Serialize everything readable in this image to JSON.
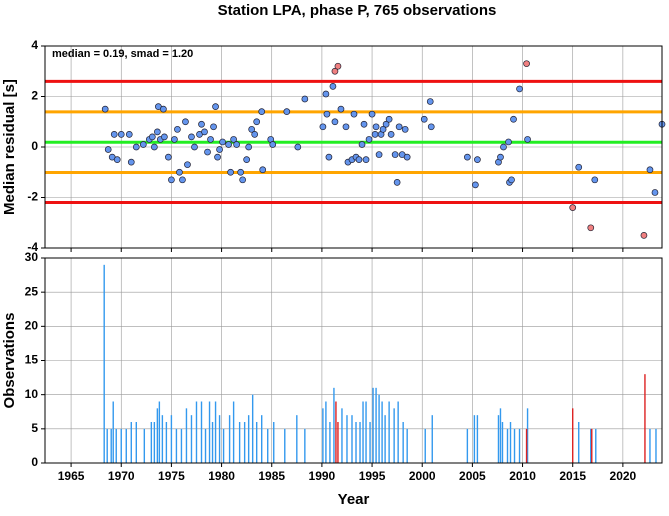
{
  "chart_data": [
    {
      "type": "scatter",
      "title": "Station LPA, phase P, 765 observations",
      "ylabel": "Median residual [s]",
      "annotation": "median = 0.19, smad = 1.20",
      "xlim": [
        1962.4,
        2023.9
      ],
      "xticks": [
        1965,
        1970,
        1975,
        1980,
        1985,
        1990,
        1995,
        2000,
        2005,
        2010,
        2015,
        2020
      ],
      "ylim": [
        -4,
        4
      ],
      "yticks": [
        -4,
        -2,
        0,
        2,
        4
      ],
      "grid": true,
      "hlines": [
        {
          "value": 2.6,
          "color": "#ee1111"
        },
        {
          "value": 1.39,
          "color": "#ffa500"
        },
        {
          "value": 0.19,
          "color": "#22ee22"
        },
        {
          "value": -1.01,
          "color": "#ffa500"
        },
        {
          "value": -2.2,
          "color": "#ee1111"
        }
      ],
      "series": [
        {
          "color": "#6495ed",
          "x": [
            1968.4,
            1968.7,
            1969.1,
            1969.3,
            1969.6,
            1970.0,
            1970.8,
            1971.0,
            1971.5,
            1972.2,
            1972.8,
            1973.1,
            1973.3,
            1973.6,
            1973.7,
            1973.9,
            1974.2,
            1974.3,
            1974.7,
            1975.0,
            1975.3,
            1975.6,
            1975.8,
            1976.1,
            1976.4,
            1976.6,
            1977.0,
            1977.3,
            1977.8,
            1978.0,
            1978.3,
            1978.6,
            1978.9,
            1979.2,
            1979.4,
            1979.6,
            1979.8,
            1980.1,
            1980.7,
            1980.9,
            1981.2,
            1981.5,
            1981.9,
            1982.1,
            1982.5,
            1982.7,
            1983.0,
            1983.3,
            1983.5,
            1984.0,
            1984.1,
            1984.9,
            1985.1,
            1986.5,
            1987.6,
            1988.3,
            1990.1,
            1990.4,
            1990.5,
            1990.7,
            1991.1,
            1991.3,
            1991.9,
            1992.4,
            1992.6,
            1993.0,
            1993.2,
            1993.4,
            1993.7,
            1994.0,
            1994.2,
            1994.4,
            1994.7,
            1995.0,
            1995.3,
            1995.4,
            1995.7,
            1995.9,
            1996.1,
            1996.4,
            1996.7,
            1996.9,
            1997.3,
            1997.5,
            1997.7,
            1998.0,
            1998.3,
            1998.5,
            2000.2,
            2000.8,
            2000.9,
            2004.5,
            2005.3,
            2005.5,
            2007.6,
            2007.8,
            2008.1,
            2008.6,
            2008.7,
            2008.9,
            2009.1,
            2009.7,
            2010.5,
            2015.6,
            2017.2,
            2022.7,
            2023.2,
            2023.9
          ],
          "values": [
            1.5,
            -0.1,
            -0.4,
            0.5,
            -0.5,
            0.5,
            0.5,
            -0.6,
            0.0,
            0.1,
            0.3,
            0.4,
            0.0,
            0.6,
            1.6,
            0.3,
            1.5,
            0.4,
            -0.4,
            -1.3,
            0.3,
            0.7,
            -1.0,
            -1.3,
            1.0,
            -0.7,
            0.4,
            0.0,
            0.5,
            0.9,
            0.6,
            -0.2,
            0.3,
            0.8,
            1.6,
            -0.4,
            -0.1,
            0.2,
            0.1,
            -1.0,
            0.3,
            0.1,
            -1.0,
            -1.3,
            -0.5,
            0.0,
            0.7,
            0.5,
            1.0,
            1.4,
            -0.9,
            0.3,
            0.1,
            1.4,
            0.0,
            1.9,
            0.8,
            2.1,
            1.3,
            -0.4,
            2.4,
            1.0,
            1.5,
            0.8,
            -0.6,
            -0.5,
            1.3,
            -0.4,
            -0.5,
            0.1,
            0.9,
            -0.5,
            0.3,
            1.3,
            0.5,
            0.8,
            -0.3,
            0.5,
            0.7,
            0.9,
            1.1,
            0.5,
            -0.3,
            -1.4,
            0.8,
            -0.3,
            0.7,
            -0.4,
            1.1,
            1.8,
            0.8,
            -0.4,
            -1.5,
            -0.5,
            -0.6,
            -0.4,
            0.0,
            0.2,
            -1.4,
            -1.3,
            1.1,
            2.3,
            0.3,
            -0.8,
            -1.3,
            -0.9,
            -1.8,
            0.9
          ]
        },
        {
          "color": "#f08080",
          "x": [
            1991.3,
            1991.6,
            2010.4,
            2015.0,
            2016.8,
            2022.1
          ],
          "values": [
            3.0,
            3.2,
            3.3,
            -2.4,
            -3.2,
            -3.5
          ]
        }
      ]
    },
    {
      "type": "bar",
      "xlabel": "Year",
      "ylabel": "Observations",
      "xlim": [
        1962.4,
        2023.9
      ],
      "xticks": [
        1965,
        1970,
        1975,
        1980,
        1985,
        1990,
        1995,
        2000,
        2005,
        2010,
        2015,
        2020
      ],
      "ylim": [
        0,
        30
      ],
      "yticks": [
        0,
        5,
        10,
        15,
        20,
        25,
        30
      ],
      "grid": true,
      "series": [
        {
          "color": "#3399ee",
          "x": [
            1968.3,
            1968.6,
            1969.0,
            1969.2,
            1969.5,
            1970.0,
            1970.5,
            1971.0,
            1971.5,
            1972.3,
            1973.0,
            1973.3,
            1973.6,
            1973.8,
            1974.1,
            1974.5,
            1975.0,
            1975.5,
            1976.0,
            1976.5,
            1977.0,
            1977.5,
            1978.0,
            1978.4,
            1978.8,
            1979.1,
            1979.4,
            1979.8,
            1980.2,
            1980.8,
            1981.2,
            1981.8,
            1982.3,
            1982.7,
            1983.1,
            1983.5,
            1984.0,
            1984.6,
            1985.2,
            1986.3,
            1987.5,
            1988.3,
            1990.1,
            1990.4,
            1990.8,
            1991.2,
            1992.0,
            1992.5,
            1993.0,
            1993.4,
            1993.8,
            1994.1,
            1994.4,
            1994.8,
            1995.1,
            1995.4,
            1995.7,
            1996.0,
            1996.3,
            1996.7,
            1997.2,
            1997.6,
            1998.1,
            1998.5,
            2000.3,
            2001.0,
            2004.5,
            2005.2,
            2005.5,
            2007.6,
            2007.8,
            2008.0,
            2008.5,
            2008.8,
            2009.2,
            2009.7,
            2010.5,
            2015.6,
            2016.8,
            2017.3,
            2022.7,
            2023.3
          ],
          "values": [
            29,
            5,
            5,
            9,
            5,
            5,
            5,
            6,
            6,
            5,
            6,
            6,
            8,
            9,
            7,
            6,
            7,
            5,
            5,
            8,
            7,
            9,
            9,
            5,
            9,
            6,
            9,
            7,
            5,
            7,
            9,
            6,
            6,
            7,
            10,
            6,
            7,
            5,
            6,
            5,
            7,
            5,
            8,
            9,
            6,
            11,
            8,
            7,
            7,
            6,
            6,
            9,
            9,
            6,
            11,
            11,
            10,
            9,
            7,
            9,
            8,
            9,
            6,
            5,
            5,
            7,
            5,
            7,
            7,
            7,
            8,
            6,
            5,
            6,
            5,
            5,
            8,
            6,
            5,
            5,
            5,
            5
          ]
        },
        {
          "color": "#dd2222",
          "x": [
            1991.4,
            1991.6,
            2010.4,
            2015.0,
            2016.9,
            2022.2
          ],
          "values": [
            9,
            6,
            5,
            8,
            5,
            13
          ]
        }
      ]
    }
  ]
}
